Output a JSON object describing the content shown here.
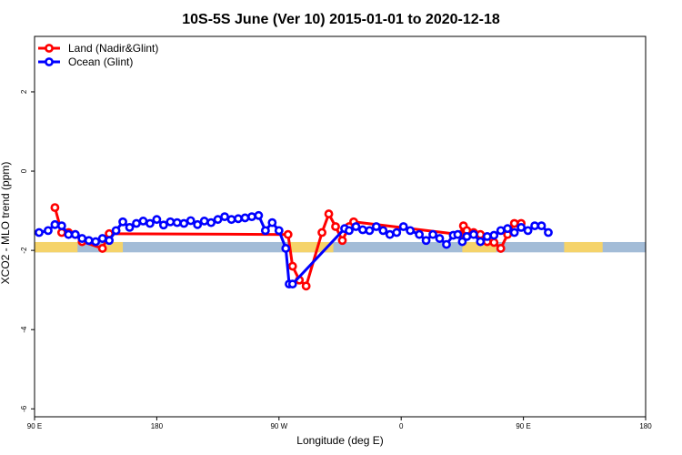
{
  "chart_data": {
    "type": "line",
    "title": "10S-5S June (Ver 10)   2015-01-01 to 2020-12-18",
    "xlabel": "Longitude (deg E)",
    "ylabel": "XCO2 - MLO trend (ppm)",
    "xlim": [
      -90,
      180
    ],
    "ylim": [
      -6.2,
      3.4
    ],
    "x_tick_positions": [
      -90,
      -36,
      18,
      72,
      126,
      180
    ],
    "x_tick_labels": [
      "90 E",
      "180",
      "90 W",
      "0",
      "90 E",
      "180"
    ],
    "y_ticks": [
      2,
      0,
      -2,
      -4,
      -6
    ],
    "y_tick_labels": [
      "2",
      "0",
      "-2",
      "-4",
      "-6"
    ],
    "grid": false,
    "legend_position": "top-left",
    "land_band": {
      "color": "#f5d36a",
      "y_center": -1.92,
      "segments": [
        [
          -90,
          -71
        ],
        [
          -59,
          -51
        ],
        [
          23,
          42
        ],
        [
          99,
          114
        ],
        [
          144,
          161
        ]
      ]
    },
    "ocean_band": {
      "color": "#a3bcd7",
      "y_center": -1.92,
      "segments": [
        [
          -90,
          180
        ]
      ]
    },
    "series": [
      {
        "name": "Land (Nadir&Glint)",
        "color": "#ff0000",
        "x": [
          -81,
          -78,
          -75,
          -72,
          -69,
          -60,
          -57,
          22,
          24,
          27,
          30,
          37,
          40,
          43,
          46,
          49,
          51,
          98,
          99.5,
          101,
          104,
          107,
          110,
          113,
          116,
          119,
          122,
          125
        ],
        "y": [
          -0.92,
          -1.55,
          -1.55,
          -1.6,
          -1.78,
          -1.95,
          -1.58,
          -1.6,
          -2.4,
          -2.75,
          -2.9,
          -1.55,
          -1.08,
          -1.4,
          -1.75,
          -1.4,
          -1.28,
          -1.6,
          -1.38,
          -1.5,
          -1.55,
          -1.6,
          -1.78,
          -1.8,
          -1.95,
          -1.6,
          -1.32,
          -1.32
        ]
      },
      {
        "name": "Ocean (Glint)",
        "color": "#0000ff",
        "x": [
          -88,
          -84,
          -81,
          -78,
          -75,
          -72,
          -69,
          -66,
          -63,
          -60,
          -57,
          -54,
          -51,
          -48,
          -45,
          -42,
          -39,
          -36,
          -33,
          -30,
          -27,
          -24,
          -21,
          -18,
          -15,
          -12,
          -9,
          -6,
          -3,
          0,
          3,
          6,
          9,
          12,
          15,
          18,
          21,
          22.5,
          24,
          47,
          49,
          52,
          55,
          58,
          61,
          64,
          67,
          70,
          73,
          76,
          80,
          83,
          86,
          89,
          92,
          95,
          97,
          99,
          101,
          104,
          107,
          110,
          113,
          116,
          119,
          122,
          125,
          128,
          131,
          134,
          137
        ],
        "y": [
          -1.55,
          -1.5,
          -1.35,
          -1.38,
          -1.6,
          -1.6,
          -1.7,
          -1.75,
          -1.78,
          -1.7,
          -1.75,
          -1.5,
          -1.28,
          -1.42,
          -1.32,
          -1.26,
          -1.32,
          -1.22,
          -1.36,
          -1.28,
          -1.3,
          -1.32,
          -1.25,
          -1.35,
          -1.26,
          -1.3,
          -1.22,
          -1.15,
          -1.22,
          -1.2,
          -1.18,
          -1.15,
          -1.12,
          -1.5,
          -1.3,
          -1.5,
          -1.95,
          -2.85,
          -2.85,
          -1.45,
          -1.5,
          -1.4,
          -1.48,
          -1.5,
          -1.4,
          -1.5,
          -1.6,
          -1.55,
          -1.4,
          -1.5,
          -1.6,
          -1.75,
          -1.6,
          -1.7,
          -1.85,
          -1.62,
          -1.6,
          -1.78,
          -1.65,
          -1.6,
          -1.78,
          -1.65,
          -1.62,
          -1.5,
          -1.45,
          -1.55,
          -1.42,
          -1.5,
          -1.38,
          -1.38,
          -1.55
        ]
      }
    ]
  }
}
